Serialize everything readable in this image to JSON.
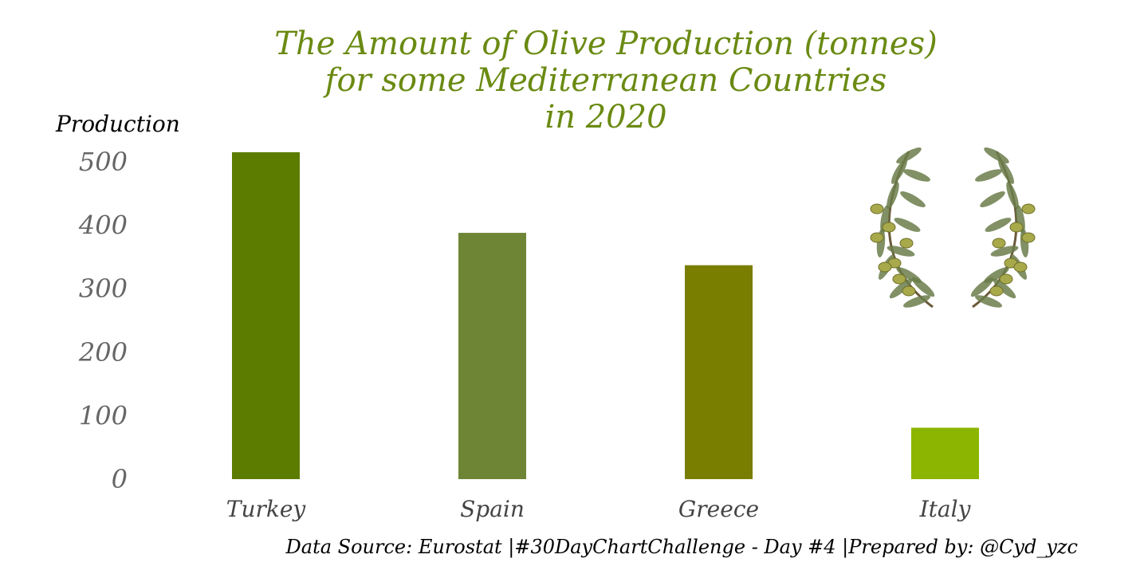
{
  "chart_data": {
    "type": "bar",
    "title_lines": [
      "The Amount of Olive Production (tonnes)",
      "for some Mediterranean Countries",
      "in 2020"
    ],
    "ylabel": "Production",
    "xlabel": "",
    "categories": [
      "Turkey",
      "Spain",
      "Greece",
      "Italy"
    ],
    "values": [
      515,
      388,
      337,
      81
    ],
    "colors": [
      "#5c7c00",
      "#6e8536",
      "#7a7e00",
      "#8bb500"
    ],
    "ylim": [
      0,
      530
    ],
    "yticks": [
      "0",
      "100",
      "200",
      "300",
      "400",
      "500"
    ],
    "grid": false,
    "caption": "Data Source: Eurostat |#30DayChartChallenge - Day #4 |Prepared by: @Cyd_yzc"
  },
  "decoration": {
    "icon": "olive-wreath-icon",
    "leaf_color": "#6b7d4a",
    "olive_color": "#a7a94a"
  }
}
